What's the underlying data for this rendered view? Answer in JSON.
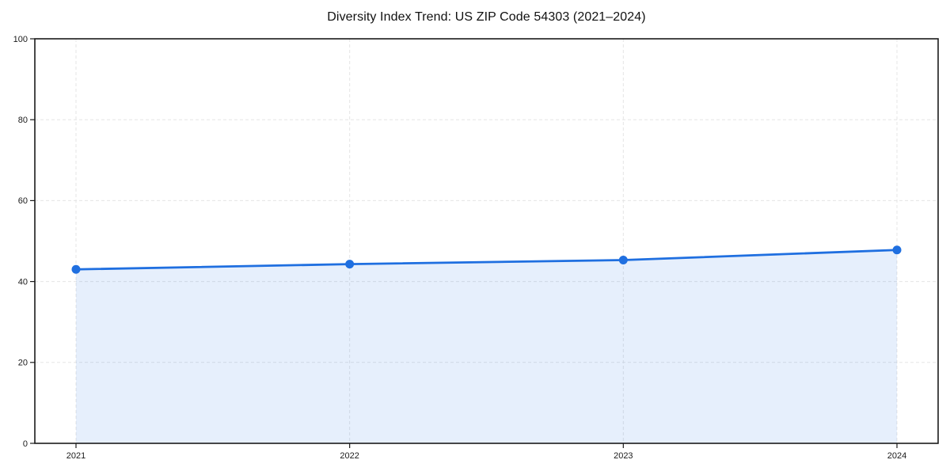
{
  "chart_data": {
    "type": "area",
    "title": "Diversity Index Trend: US ZIP Code 54303 (2021–2024)",
    "categories": [
      "2021",
      "2022",
      "2023",
      "2024"
    ],
    "series": [
      {
        "name": "Diversity Index",
        "values": [
          43.0,
          44.3,
          45.3,
          47.8
        ]
      }
    ],
    "xlabel": "",
    "ylabel": "",
    "ylim": [
      0,
      100
    ],
    "yticks": [
      0,
      20,
      40,
      60,
      80,
      100
    ],
    "grid": true,
    "grid_style": "dashed",
    "legend_position": "none",
    "colors": {
      "line": "#1f6fe0",
      "marker": "#1f6fe0",
      "fill": "#1f6fe0",
      "fill_opacity": 0.11,
      "grid": "#e5e5e5",
      "spine": "#1a1a1a",
      "tick": "#1a1a1a",
      "title": "#111111",
      "background": "#ffffff"
    }
  }
}
